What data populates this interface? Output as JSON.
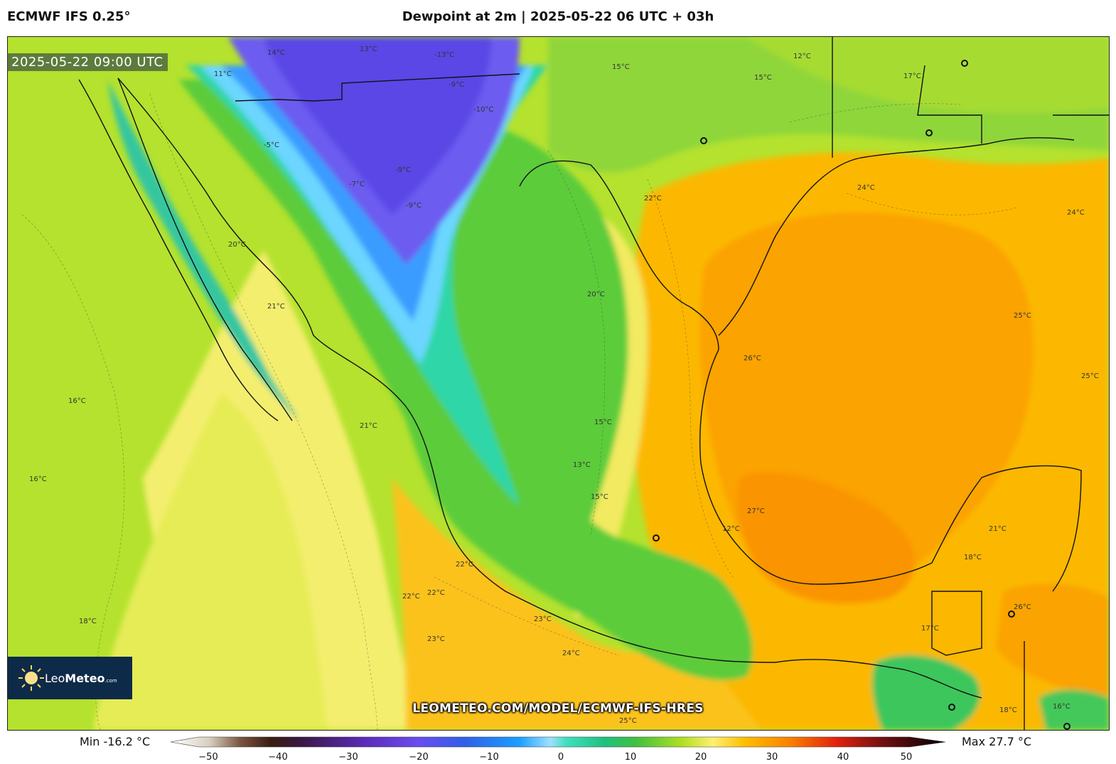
{
  "header": {
    "model": "ECMWF IFS 0.25°",
    "title": "Dewpoint at 2m | 2025-05-22 06 UTC + 03h"
  },
  "map": {
    "valid_time": "2025-05-22 09:00 UTC",
    "watermark": "LEOMETEO.COM/MODEL/ECMWF-IFS-HRES",
    "contour_labels": [
      "14°C",
      "13°C",
      "-13°C",
      "-9°C",
      "11°C",
      "-5°C",
      "-10°C",
      "-9°C",
      "-7°C",
      "-9°C",
      "15°C",
      "17°C",
      "15°C",
      "12°C",
      "20°C",
      "21°C",
      "16°C",
      "16°C",
      "21°C",
      "18°C",
      "22°C",
      "22°C",
      "22°C",
      "23°C",
      "23°C",
      "24°C",
      "25°C",
      "26°C",
      "27°C",
      "24°C",
      "25°C",
      "24°C",
      "22°C",
      "20°C",
      "15°C",
      "13°C",
      "15°C",
      "21°C",
      "18°C",
      "17°C",
      "12°C",
      "25°C",
      "26°C",
      "16°C",
      "18°C"
    ],
    "colors": {
      "cold_purple": "#5a46e6",
      "cold_blue": "#3aa0ff",
      "teal": "#3de0b8",
      "green": "#32c25a",
      "lime": "#9ede2c",
      "yellow": "#fff07a",
      "orange": "#fcb400",
      "deep_orange": "#fa9600"
    }
  },
  "logo": {
    "brand_light": "Leo",
    "brand_bold": "Meteo",
    "suffix": ".com"
  },
  "legend": {
    "min_label": "Min -16.2 °C",
    "max_label": "Max 27.7 °C",
    "ticks": [
      "−50",
      "−40",
      "−30",
      "−20",
      "−10",
      "0",
      "10",
      "20",
      "30",
      "40",
      "50"
    ]
  }
}
